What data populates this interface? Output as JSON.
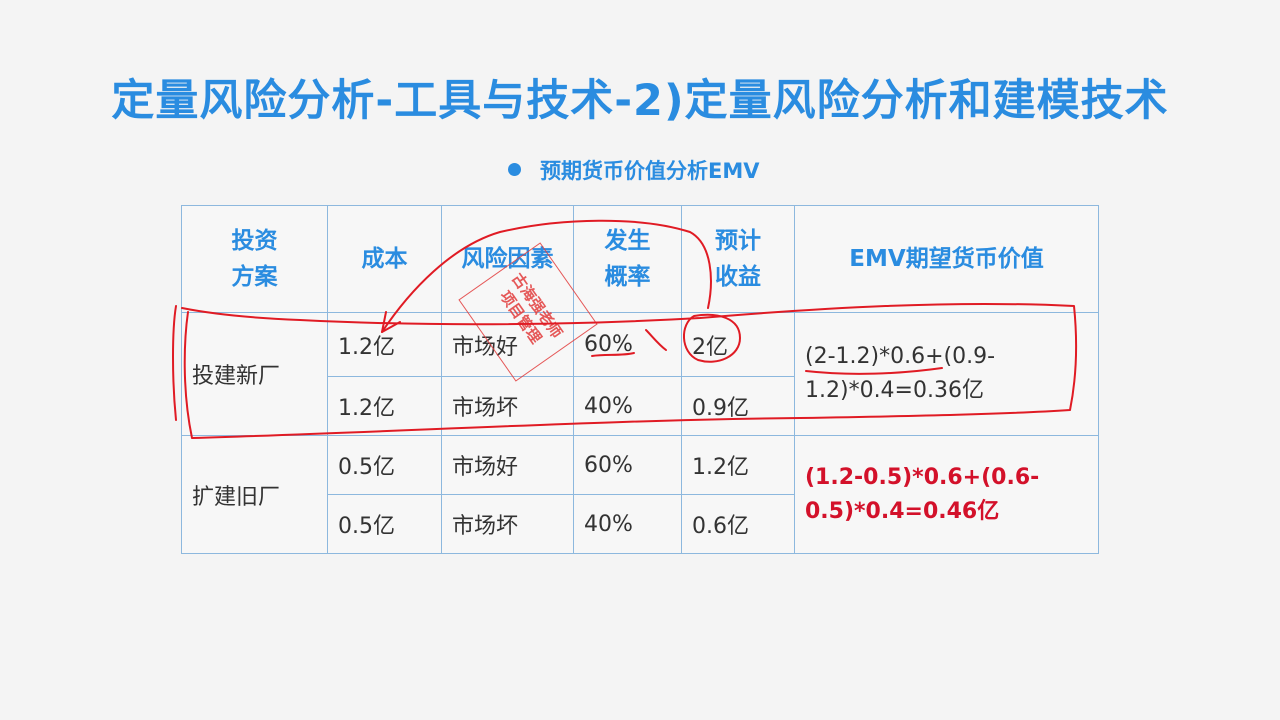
{
  "title": "定量风险分析-工具与技术-2)定量风险分析和建模技术",
  "subtitle": "预期货币价值分析EMV",
  "table": {
    "headers": {
      "plan_line1": "投资",
      "plan_line2": "方案",
      "cost": "成本",
      "risk": "风险因素",
      "prob_line1": "发生",
      "prob_line2": "概率",
      "gain_line1": "预计",
      "gain_line2": "收益",
      "emv": "EMV期望货币价值"
    },
    "groups": [
      {
        "plan": "投建新厂",
        "rows": [
          {
            "cost": "1.2亿",
            "risk": "市场好",
            "prob": "60%",
            "gain": "2亿"
          },
          {
            "cost": "1.2亿",
            "risk": "市场坏",
            "prob": "40%",
            "gain": "0.9亿"
          }
        ],
        "emv_line1": "(2-1.2)*0.6+(0.9-",
        "emv_line2": "1.2)*0.4=0.36亿"
      },
      {
        "plan": "扩建旧厂",
        "rows": [
          {
            "cost": "0.5亿",
            "risk": "市场好",
            "prob": "60%",
            "gain": "1.2亿"
          },
          {
            "cost": "0.5亿",
            "risk": "市场坏",
            "prob": "40%",
            "gain": "0.6亿"
          }
        ],
        "emv_line1": "(1.2-0.5)*0.6+(0.6-",
        "emv_line2": "0.5)*0.4=0.46亿"
      }
    ]
  },
  "watermark": {
    "line1": "古海强老师",
    "line2": "项目管理"
  },
  "colors": {
    "title": "#2a8ce0",
    "border": "#8db8de",
    "highlight_red": "#d3112a",
    "annotation_red": "#e01b24"
  }
}
